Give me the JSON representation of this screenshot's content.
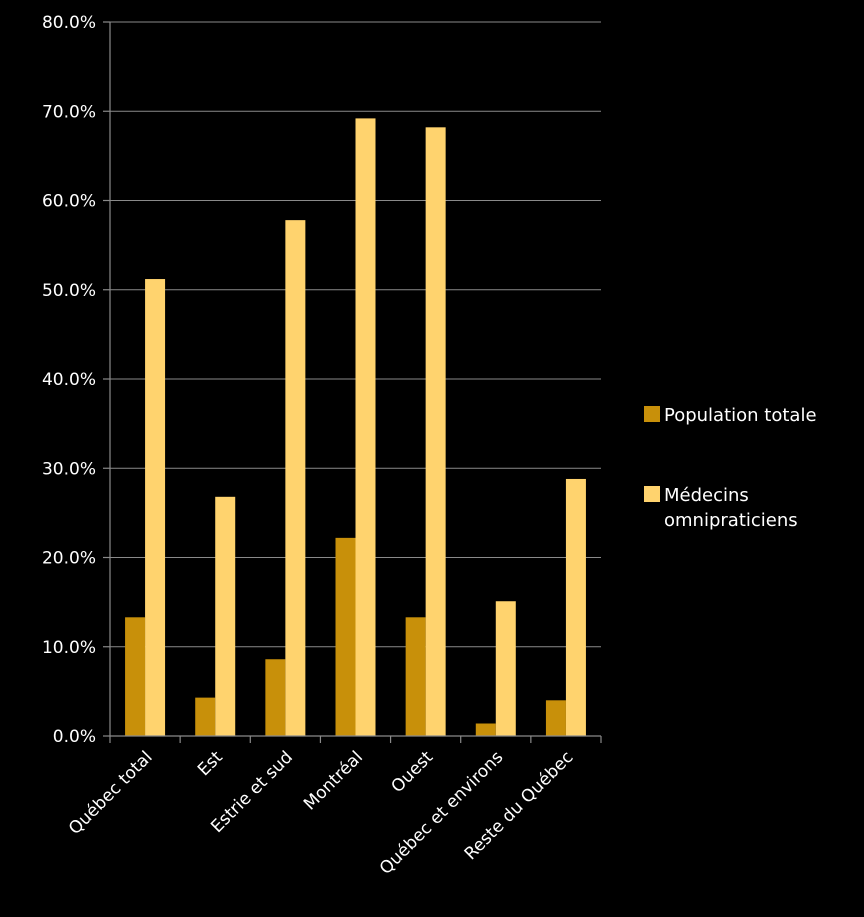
{
  "chart_data": {
    "type": "bar",
    "title": "",
    "xlabel": "",
    "ylabel": "",
    "ylim": [
      0,
      80
    ],
    "y_ticks": [
      "0.0%",
      "10.0%",
      "20.0%",
      "30.0%",
      "40.0%",
      "50.0%",
      "60.0%",
      "70.0%",
      "80.0%"
    ],
    "y_tick_values": [
      0,
      10,
      20,
      30,
      40,
      50,
      60,
      70,
      80
    ],
    "grid": true,
    "legend_position": "right",
    "categories": [
      "Québec total",
      "Est",
      "Estrie et sud",
      "Montréal",
      "Ouest",
      "Québec et environs",
      "Reste du Québec"
    ],
    "series": [
      {
        "name": "Population totale",
        "color": "#c8900a",
        "values": [
          13.3,
          4.3,
          8.6,
          22.2,
          13.3,
          1.4,
          4.0
        ]
      },
      {
        "name": "Médecins omnipraticiens",
        "name_lines": [
          "Médecins",
          "omnipraticiens"
        ],
        "color": "#ffd36e",
        "values": [
          51.2,
          26.8,
          57.8,
          69.2,
          68.2,
          15.1,
          28.8
        ]
      }
    ]
  }
}
